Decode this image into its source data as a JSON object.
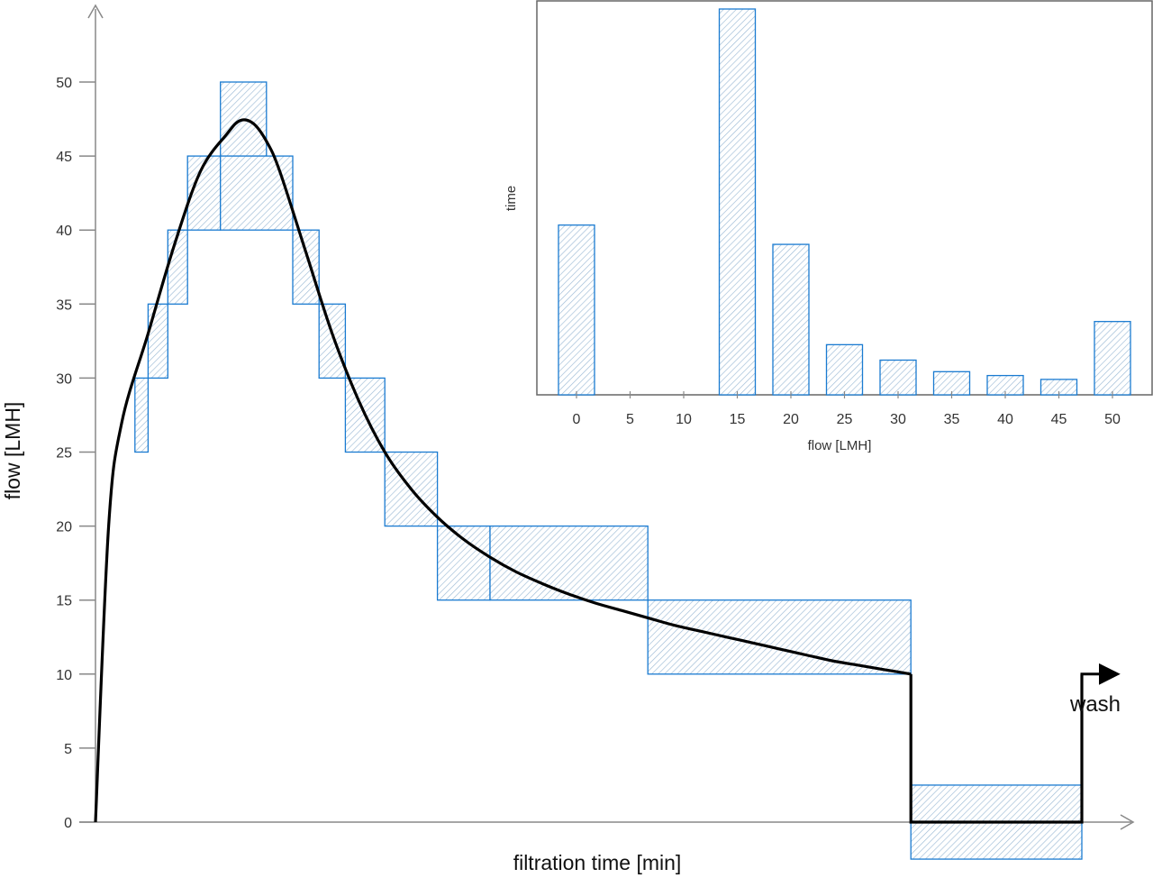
{
  "chart_data": [
    {
      "type": "line",
      "xlabel": "filtration time [min]",
      "ylabel": "flow [LMH]",
      "ylim": [
        0,
        50
      ],
      "yticks": [
        "0",
        "5",
        "10",
        "15",
        "20",
        "25",
        "30",
        "35",
        "40",
        "45",
        "50"
      ],
      "x_tick_labels_shown": false,
      "series": [
        {
          "kind": "curve",
          "color": "#000000",
          "points": [
            [
              0,
              0
            ],
            [
              0.5,
              20
            ],
            [
              1,
              27
            ],
            [
              2,
              33
            ],
            [
              3,
              39
            ],
            [
              4,
              44
            ],
            [
              5,
              46.5
            ],
            [
              5.5,
              47.4
            ],
            [
              6,
              47.2
            ],
            [
              6.5,
              46
            ],
            [
              7,
              44
            ],
            [
              8,
              38.5
            ],
            [
              9,
              33
            ],
            [
              10,
              28.5
            ],
            [
              11,
              25
            ],
            [
              12,
              22.5
            ],
            [
              13,
              20.6
            ],
            [
              14,
              19.1
            ],
            [
              15,
              17.9
            ],
            [
              16,
              16.9
            ],
            [
              17,
              16.1
            ],
            [
              18,
              15.4
            ],
            [
              19,
              14.8
            ],
            [
              20,
              14.3
            ],
            [
              21,
              13.8
            ],
            [
              22,
              13.3
            ],
            [
              23,
              12.9
            ],
            [
              24,
              12.5
            ],
            [
              25,
              12.1
            ],
            [
              26,
              11.7
            ],
            [
              27,
              11.3
            ],
            [
              28,
              10.9
            ],
            [
              29,
              10.6
            ],
            [
              30,
              10.3
            ],
            [
              31,
              10
            ],
            [
              31,
              0
            ],
            [
              37.5,
              0
            ],
            [
              37.5,
              10
            ]
          ]
        },
        {
          "kind": "step-bars",
          "color": "#1a7bd1",
          "bars": [
            {
              "x0": 1.5,
              "x1": 2,
              "y0": 25,
              "y1": 30
            },
            {
              "x0": 2,
              "x1": 2.75,
              "y0": 30,
              "y1": 35
            },
            {
              "x0": 2.75,
              "x1": 3.5,
              "y0": 35,
              "y1": 40
            },
            {
              "x0": 3.5,
              "x1": 4.75,
              "y0": 40,
              "y1": 45
            },
            {
              "x0": 4.75,
              "x1": 6.5,
              "y0": 45,
              "y1": 50
            },
            {
              "x0": 4.75,
              "x1": 7.5,
              "y0": 40,
              "y1": 45
            },
            {
              "x0": 7.5,
              "x1": 8.5,
              "y0": 35,
              "y1": 40
            },
            {
              "x0": 8.5,
              "x1": 9.5,
              "y0": 30,
              "y1": 35
            },
            {
              "x0": 9.5,
              "x1": 11,
              "y0": 25,
              "y1": 30
            },
            {
              "x0": 11,
              "x1": 13,
              "y0": 20,
              "y1": 25
            },
            {
              "x0": 13,
              "x1": 15,
              "y0": 15,
              "y1": 20
            },
            {
              "x0": 15,
              "x1": 21,
              "y0": 15,
              "y1": 20
            },
            {
              "x0": 21,
              "x1": 31,
              "y0": 10,
              "y1": 15
            },
            {
              "x0": 31,
              "x1": 37.5,
              "y0": -2.5,
              "y1": 2.5
            }
          ]
        }
      ],
      "annotations": [
        {
          "text": "wash"
        }
      ]
    },
    {
      "type": "bar",
      "xlabel": "flow [LMH]",
      "ylabel": "time",
      "categories": [
        "0",
        "5",
        "10",
        "15",
        "20",
        "25",
        "30",
        "35",
        "40",
        "45",
        "50"
      ],
      "values": [
        44,
        0,
        0,
        100,
        39,
        13,
        9,
        6,
        5,
        4,
        19
      ],
      "color": "#1a7bd1"
    }
  ]
}
